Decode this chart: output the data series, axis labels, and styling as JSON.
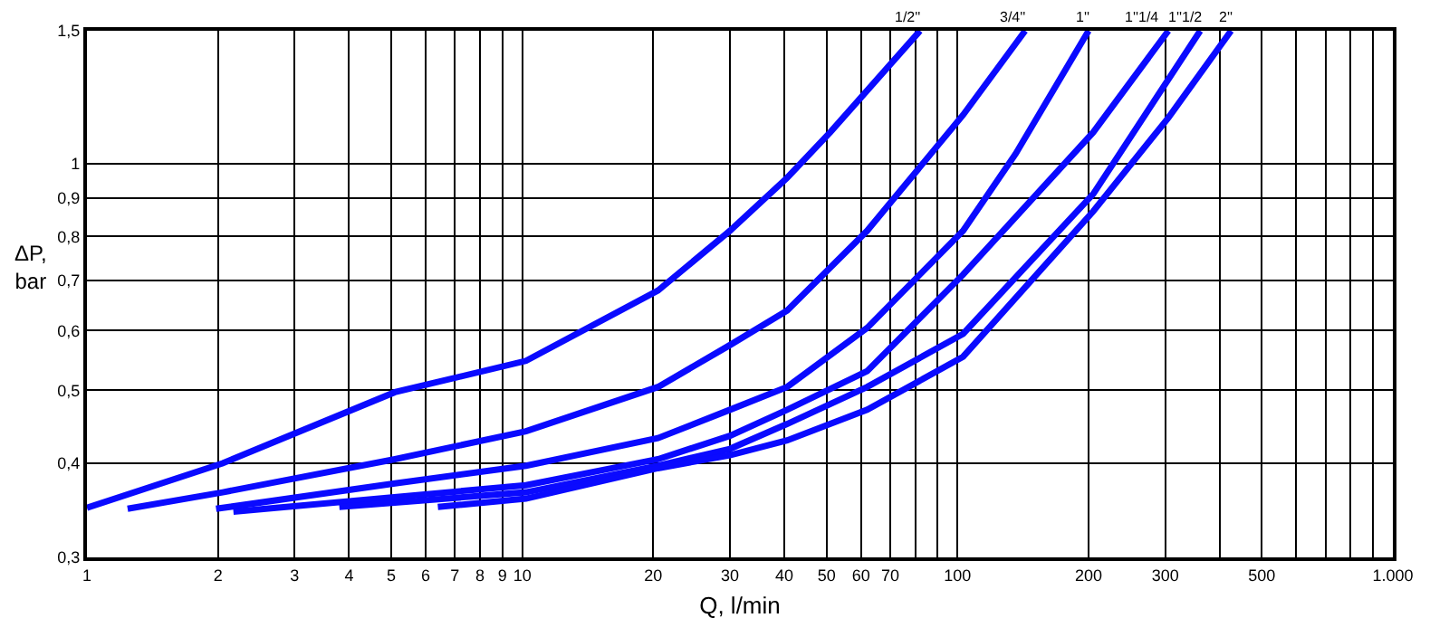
{
  "chart_data": {
    "type": "line",
    "xlabel": "Q, l/min",
    "ylabel": "ΔP,\nbar",
    "log": "xy",
    "grid": true,
    "legend": false,
    "marker": "none",
    "line_style": "solid",
    "xlim": [
      1,
      1000
    ],
    "ylim": [
      0.3,
      1.5
    ],
    "xticks": [
      1,
      2,
      3,
      4,
      5,
      6,
      7,
      8,
      9,
      10,
      20,
      30,
      40,
      50,
      60,
      70,
      {
        "value": 80,
        "label": null
      },
      {
        "value": 90,
        "label": null
      },
      100,
      200,
      300,
      {
        "value": 400,
        "label": null
      },
      500,
      {
        "value": 600,
        "label": null
      },
      {
        "value": 700,
        "label": null
      },
      {
        "value": 800,
        "label": null
      },
      {
        "value": 900,
        "label": null
      },
      {
        "value": 1000,
        "label": "1.000"
      }
    ],
    "yticks": [
      {
        "value": 0.3,
        "label": "0,3"
      },
      {
        "value": 0.4,
        "label": "0,4"
      },
      {
        "value": 0.5,
        "label": "0,5"
      },
      {
        "value": 0.6,
        "label": "0,6"
      },
      {
        "value": 0.7,
        "label": "0,7"
      },
      {
        "value": 0.8,
        "label": "0,8"
      },
      {
        "value": 0.9,
        "label": "0,9"
      },
      1,
      {
        "value": 1.5,
        "label": "1,5"
      }
    ],
    "series": [
      {
        "name": "1/2''",
        "color": "#0a0aff",
        "x": [
          1,
          2.05,
          5.1,
          10.2,
          20.5,
          30,
          40.6,
          51,
          82
        ],
        "values": [
          0.349,
          0.4,
          0.497,
          0.547,
          0.678,
          0.814,
          0.957,
          1.1,
          1.5
        ]
      },
      {
        "name": "3/4''",
        "color": "#0a0aff",
        "x": [
          1.24,
          2.05,
          5.1,
          10.2,
          20.5,
          30,
          40.6,
          62,
          103,
          143
        ],
        "values": [
          0.348,
          0.366,
          0.405,
          0.441,
          0.505,
          0.574,
          0.638,
          0.814,
          1.16,
          1.5
        ]
      },
      {
        "name": "1''",
        "color": "#0a0aff",
        "x": [
          1.98,
          5.1,
          10.2,
          20.5,
          30,
          40.6,
          62,
          103,
          136,
          200
        ],
        "values": [
          0.348,
          0.376,
          0.397,
          0.432,
          0.471,
          0.505,
          0.605,
          0.814,
          1.03,
          1.5
        ]
      },
      {
        "name": "1''1/4",
        "color": "#0a0aff",
        "x": [
          2.17,
          10.2,
          20.5,
          30,
          40.6,
          62,
          103,
          205,
          305
        ],
        "values": [
          0.345,
          0.374,
          0.405,
          0.435,
          0.471,
          0.53,
          0.712,
          1.1,
          1.5
        ]
      },
      {
        "name": "1''1/2",
        "color": "#0a0aff",
        "x": [
          3.8,
          10.2,
          20.5,
          30,
          40.6,
          62,
          103,
          205,
          361
        ],
        "values": [
          0.35,
          0.366,
          0.397,
          0.418,
          0.451,
          0.505,
          0.594,
          0.911,
          1.5
        ]
      },
      {
        "name": "2''",
        "color": "#0a0aff",
        "x": [
          6.4,
          10.2,
          20.5,
          30,
          40.6,
          62,
          103,
          205,
          305,
          425
        ],
        "values": [
          0.35,
          0.359,
          0.394,
          0.41,
          0.429,
          0.471,
          0.554,
          0.864,
          1.15,
          1.5
        ]
      }
    ]
  }
}
